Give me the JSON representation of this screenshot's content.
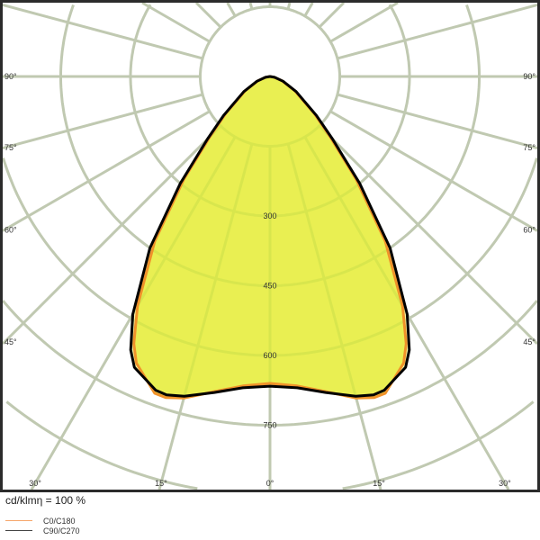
{
  "chart_data": {
    "type": "polar",
    "unit_label": "cd/klmη = 100 %",
    "radial_ticks": [
      150,
      300,
      450,
      600,
      750,
      900
    ],
    "radial_tick_labels": [
      "300",
      "450",
      "600",
      "750"
    ],
    "angle_tick_labels": {
      "sides": [
        "90°",
        "75°",
        "60°",
        "45°"
      ],
      "bottom": [
        "30°",
        "15°",
        "0°",
        "15°",
        "30°"
      ]
    },
    "angle_step_deg": 15,
    "grid": true,
    "series": [
      {
        "name": "C0/C180",
        "color": "#f0922a",
        "angles": [
          0,
          5,
          10,
          15,
          18,
          20,
          25,
          27,
          30,
          35,
          40,
          45,
          50,
          60,
          70,
          80,
          90
        ],
        "values": [
          660,
          668,
          688,
          716,
          726,
          725,
          680,
          645,
          570,
          432,
          288,
          182,
          125,
          62,
          28,
          9,
          0
        ]
      },
      {
        "name": "C90/C270",
        "color": "#000000",
        "angles": [
          0,
          5,
          10,
          15,
          18,
          20,
          25,
          27,
          30,
          35,
          40,
          45,
          50,
          60,
          70,
          80,
          90
        ],
        "values": [
          666,
          672,
          690,
          712,
          720,
          718,
          690,
          660,
          590,
          450,
          300,
          190,
          130,
          65,
          30,
          10,
          0
        ]
      }
    ],
    "fill_colors": {
      "inner": "#e9ef52",
      "outer": "#f6f7a6"
    }
  }
}
